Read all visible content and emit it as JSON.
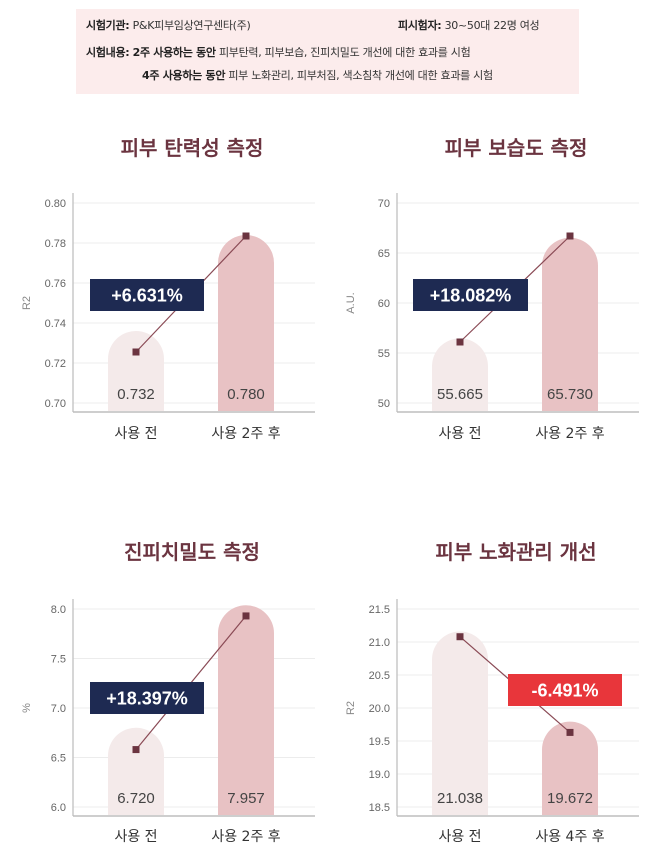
{
  "info": {
    "row1": {
      "label": "시험기관:",
      "value": "P&K피부임상연구센타(주)",
      "label2": "피시험자:",
      "value2": "30~50대 22명 여성"
    },
    "row2": {
      "label": "시험내용:",
      "emphasis": "2주 사용하는 동안",
      "text": "피부탄력, 피부보습, 진피치밀도 개선에 대한 효과를 시험"
    },
    "row3": {
      "emphasis": "4주 사용하는 동안",
      "text": "피부 노화관리, 피부처짐, 색소침착 개선에 대한 효과를 시험"
    }
  },
  "colors": {
    "title": "#6b3440",
    "bar_before": "#f4eaea",
    "bar_after": "#e8c2c4",
    "badge_navy": "#1e2a52",
    "badge_red": "#e8363b",
    "line": "#8a4a55",
    "marker": "#6b3440"
  },
  "chart_data": [
    {
      "type": "bar",
      "title": "피부 탄력성 측정",
      "ylabel": "R2",
      "categories": [
        "사용 전",
        "사용 2주 후"
      ],
      "values": [
        0.732,
        0.78
      ],
      "value_labels": [
        "0.732",
        "0.780"
      ],
      "marker_values": [
        0.7255,
        0.7835
      ],
      "ylim": [
        0.7,
        0.8
      ],
      "yticks": [
        "0.70",
        "0.72",
        "0.74",
        "0.76",
        "0.78",
        "0.80"
      ],
      "grid": true,
      "change_label": "+6.631%",
      "change_color": "navy"
    },
    {
      "type": "bar",
      "title": "피부 보습도 측정",
      "ylabel": "A.U.",
      "categories": [
        "사용 전",
        "사용 2주 후"
      ],
      "values": [
        55.665,
        65.73
      ],
      "value_labels": [
        "55.665",
        "65.730"
      ],
      "marker_values": [
        56.1,
        66.7
      ],
      "ylim": [
        50,
        70
      ],
      "yticks": [
        "50",
        "55",
        "60",
        "65",
        "70"
      ],
      "grid": true,
      "change_label": "+18.082%",
      "change_color": "navy"
    },
    {
      "type": "bar",
      "title": "진피치밀도 측정",
      "ylabel": "%",
      "categories": [
        "사용 전",
        "사용 2주 후"
      ],
      "values": [
        6.72,
        7.957
      ],
      "value_labels": [
        "6.720",
        "7.957"
      ],
      "marker_values": [
        6.58,
        7.93
      ],
      "ylim": [
        6.0,
        8.0
      ],
      "yticks": [
        "6.0",
        "6.5",
        "7.0",
        "7.5",
        "8.0"
      ],
      "grid": true,
      "change_label": "+18.397%",
      "change_color": "navy"
    },
    {
      "type": "bar",
      "title": "피부 노화관리 개선",
      "ylabel": "R2",
      "categories": [
        "사용 전",
        "사용 4주 후"
      ],
      "values": [
        21.038,
        19.672
      ],
      "value_labels": [
        "21.038",
        "19.672"
      ],
      "marker_values": [
        21.08,
        19.63
      ],
      "ylim": [
        18.5,
        21.5
      ],
      "yticks": [
        "18.5",
        "19.0",
        "19.5",
        "20.0",
        "20.5",
        "21.0",
        "21.5"
      ],
      "grid": true,
      "change_label": "-6.491%",
      "change_color": "red"
    }
  ]
}
